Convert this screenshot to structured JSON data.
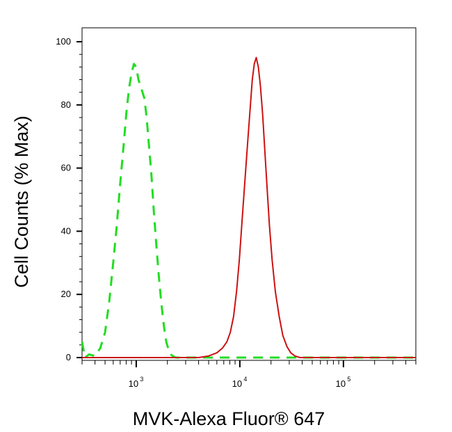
{
  "chart_data": {
    "type": "line",
    "title": "",
    "xlabel": "MVK-Alexa Fluor® 647",
    "ylabel": "Cell Counts (% Max)",
    "x_scale": "log",
    "xlim": [
      300,
      500000
    ],
    "ylim": [
      0,
      103
    ],
    "x_ticks": [
      {
        "base": "10",
        "exp": "3",
        "value": 1000
      },
      {
        "base": "10",
        "exp": "4",
        "value": 10000
      },
      {
        "base": "10",
        "exp": "5",
        "value": 100000
      }
    ],
    "y_ticks": [
      "0",
      "20",
      "40",
      "60",
      "80",
      "100"
    ],
    "grid": false,
    "legend": "none",
    "series": [
      {
        "color": "#22dd22",
        "style": "dashed",
        "x": [
          300,
          320,
          350,
          400,
          450,
          500,
          550,
          600,
          650,
          700,
          750,
          800,
          850,
          900,
          950,
          1000,
          1050,
          1100,
          1150,
          1200,
          1260,
          1320,
          1400,
          1480,
          1560,
          1650,
          1750,
          1850,
          1950,
          2050,
          2150,
          2250,
          2400,
          2600,
          2800,
          3000,
          3500,
          5000,
          10000,
          30000,
          100000,
          500000
        ],
        "y": [
          5,
          0,
          1,
          0.5,
          3,
          8,
          18,
          30,
          42,
          55,
          66,
          77,
          85,
          90,
          93,
          92,
          88,
          86,
          84,
          82,
          76,
          68,
          58,
          46,
          36,
          26,
          17,
          10,
          5,
          2.5,
          1,
          0.5,
          0,
          0,
          0,
          0,
          0,
          0,
          0,
          0,
          0,
          0
        ]
      },
      {
        "color": "#cc1111",
        "style": "solid",
        "x": [
          300,
          1000,
          4000,
          5000,
          6000,
          6800,
          7500,
          8100,
          8700,
          9300,
          9900,
          10500,
          11200,
          11900,
          12600,
          13200,
          13800,
          14400,
          15100,
          15800,
          16600,
          17400,
          18300,
          19300,
          20500,
          22000,
          24000,
          26000,
          28500,
          31000,
          34000,
          38000,
          45000,
          60000,
          100000,
          500000
        ],
        "y": [
          0,
          0,
          0,
          0.5,
          1.5,
          3,
          5,
          8,
          13,
          21,
          31,
          43,
          56,
          68,
          79,
          88,
          93,
          95,
          92,
          86,
          77,
          66,
          54,
          42,
          31,
          21,
          13,
          7,
          3.5,
          1.5,
          0.5,
          0,
          0,
          0,
          0,
          0
        ]
      }
    ]
  }
}
